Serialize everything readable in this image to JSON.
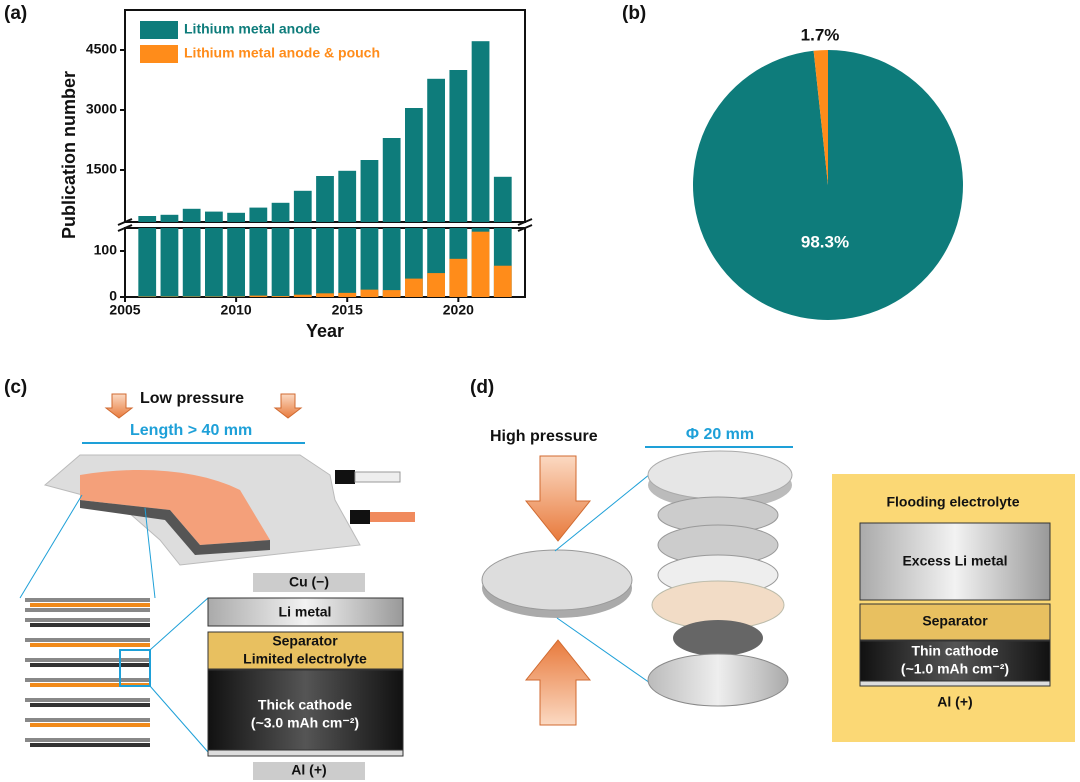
{
  "chart_data": [
    {
      "type": "bar",
      "panel": "(a)",
      "xlabel": "Year",
      "ylabel": "Publication number",
      "x": [
        2006,
        2007,
        2008,
        2009,
        2010,
        2011,
        2012,
        2013,
        2014,
        2015,
        2016,
        2017,
        2018,
        2019,
        2020,
        2021,
        2022
      ],
      "series": [
        {
          "name": "Lithium metal anode",
          "color": "#0e7c7b",
          "values": [
            350,
            380,
            530,
            460,
            430,
            560,
            680,
            980,
            1350,
            1480,
            1750,
            2300,
            3050,
            3780,
            4000,
            4720,
            1330
          ]
        },
        {
          "name": "Lithium metal anode & pouch",
          "color": "#ff8c1a",
          "values": [
            1,
            1,
            1,
            1,
            1,
            3,
            2,
            5,
            8,
            9,
            16,
            15,
            40,
            52,
            83,
            142,
            68
          ]
        }
      ],
      "xlim": [
        2005,
        2023
      ],
      "xticks": [
        2005,
        2010,
        2015,
        2020
      ],
      "ylim": [
        0,
        150
      ],
      "yticks": [
        0,
        100
      ],
      "ylim_upper": [
        200,
        5500
      ],
      "yticks_upper": [
        1500,
        3000,
        4500
      ],
      "axis_break": true,
      "legend": "upper left"
    },
    {
      "type": "pie",
      "panel": "(b)",
      "categories": [
        "Lithium metal anode",
        "Lithium metal anode & pouch"
      ],
      "values": [
        98.3,
        1.7
      ],
      "value_labels": [
        "98.3%",
        "1.7%"
      ],
      "colors": [
        "#0e7c7b",
        "#ff8c1a"
      ]
    }
  ],
  "panel_c": {
    "label": "(c)",
    "pressure": "Low pressure",
    "length": "Length > 40 mm",
    "cu": "Cu (−)",
    "li": "Li metal",
    "separator": "Separator",
    "electrolyte": "Limited electrolyte",
    "cathode": "Thick cathode",
    "capacity": "(~3.0 mAh cm⁻²)",
    "al": "Al (+)"
  },
  "panel_d": {
    "label": "(d)",
    "pressure": "High pressure",
    "diameter": "Φ 20 mm",
    "electrolyte": "Flooding electrolyte",
    "li": "Excess Li metal",
    "separator": "Separator",
    "cathode": "Thin cathode",
    "capacity": "(~1.0 mAh cm⁻²)",
    "al": "Al (+)"
  }
}
